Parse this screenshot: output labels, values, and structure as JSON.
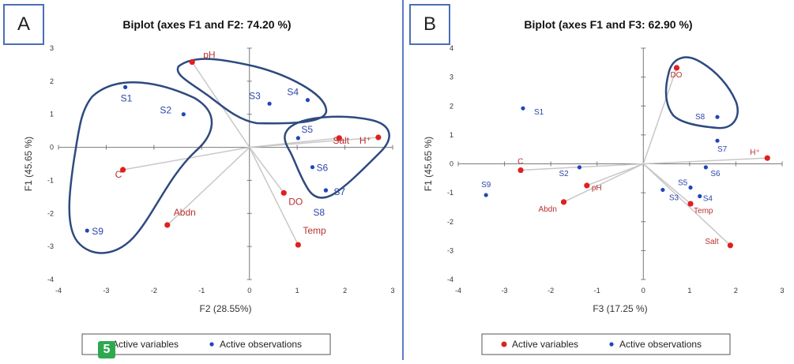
{
  "panels": {
    "a": {
      "letter": "A"
    },
    "b": {
      "letter": "B"
    }
  },
  "badge": "5",
  "colors": {
    "variable": "#e02020",
    "observation": "#2244bb",
    "variable_label": "#b83030",
    "observation_label": "#2c45a8",
    "hull": "#2e4a7e",
    "vector": "#c8c8c8"
  },
  "chart_data": [
    {
      "type": "scatter",
      "title": "Biplot (axes F1 and F2: 74.20 %)",
      "xlabel": "F2 (28.55%)",
      "ylabel": "F1 (45.65 %)",
      "xlim": [
        -4,
        3
      ],
      "ylim": [
        -4,
        3
      ],
      "xticks": [
        "-4",
        "-3",
        "-2",
        "-1",
        "0",
        "1",
        "2",
        "3"
      ],
      "yticks": [
        "-4",
        "-3",
        "-2",
        "-1",
        "0",
        "1",
        "2",
        "3"
      ],
      "legend": {
        "variables": "Active variables",
        "observations": "Active observations",
        "position": "bottom"
      },
      "variables": [
        {
          "name": "pH",
          "x": -1.2,
          "y": 2.58
        },
        {
          "name": "C",
          "x": -2.65,
          "y": -0.68
        },
        {
          "name": "Abdn",
          "x": -1.72,
          "y": -2.35
        },
        {
          "name": "DO",
          "x": 0.72,
          "y": -1.38
        },
        {
          "name": "Temp",
          "x": 1.02,
          "y": -2.95
        },
        {
          "name": "Salt",
          "x": 1.88,
          "y": 0.28
        },
        {
          "name": "H⁺",
          "x": 2.7,
          "y": 0.3
        }
      ],
      "observations": [
        {
          "name": "S1",
          "x": -2.6,
          "y": 1.82
        },
        {
          "name": "S2",
          "x": -1.38,
          "y": 1.0
        },
        {
          "name": "S3",
          "x": 0.42,
          "y": 1.32
        },
        {
          "name": "S4",
          "x": 1.22,
          "y": 1.43
        },
        {
          "name": "S5",
          "x": 1.02,
          "y": 0.28
        },
        {
          "name": "S6",
          "x": 1.32,
          "y": -0.6
        },
        {
          "name": "S7",
          "x": 1.6,
          "y": -1.3
        },
        {
          "name": "S8",
          "x": 1.6,
          "y": -1.3
        },
        {
          "name": "S9",
          "x": -3.4,
          "y": -2.52
        }
      ],
      "grid": false
    },
    {
      "type": "scatter",
      "title": "Biplot (axes F1 and F3: 62.90 %)",
      "xlabel": "F3 (17.25 %)",
      "ylabel": "F1 (45.65 %)",
      "xlim": [
        -4,
        3
      ],
      "ylim": [
        -4,
        4
      ],
      "xticks": [
        "-4",
        "-3",
        "-2",
        "-1",
        "0",
        "1",
        "2",
        "3"
      ],
      "yticks": [
        "-4",
        "-3",
        "-2",
        "-1",
        "0",
        "1",
        "2",
        "3",
        "4"
      ],
      "legend": {
        "variables": "Active variables",
        "observations": "Active observations",
        "position": "bottom"
      },
      "variables": [
        {
          "name": "DO",
          "x": 0.72,
          "y": 3.32
        },
        {
          "name": "H⁺",
          "x": 2.68,
          "y": 0.2
        },
        {
          "name": "C",
          "x": -2.65,
          "y": -0.22
        },
        {
          "name": "pH",
          "x": -1.22,
          "y": -0.75
        },
        {
          "name": "Abdn",
          "x": -1.72,
          "y": -1.32
        },
        {
          "name": "Temp",
          "x": 1.02,
          "y": -1.38
        },
        {
          "name": "Salt",
          "x": 1.88,
          "y": -2.82
        }
      ],
      "observations": [
        {
          "name": "S1",
          "x": -2.6,
          "y": 1.92
        },
        {
          "name": "S2",
          "x": -1.38,
          "y": -0.12
        },
        {
          "name": "S3",
          "x": 0.42,
          "y": -0.9
        },
        {
          "name": "S4",
          "x": 1.22,
          "y": -1.12
        },
        {
          "name": "S5",
          "x": 1.02,
          "y": -0.82
        },
        {
          "name": "S6",
          "x": 1.35,
          "y": -0.12
        },
        {
          "name": "S7",
          "x": 1.6,
          "y": 0.8
        },
        {
          "name": "S8",
          "x": 1.6,
          "y": 1.62
        },
        {
          "name": "S9",
          "x": -3.4,
          "y": -1.08
        }
      ],
      "grid": false
    }
  ]
}
